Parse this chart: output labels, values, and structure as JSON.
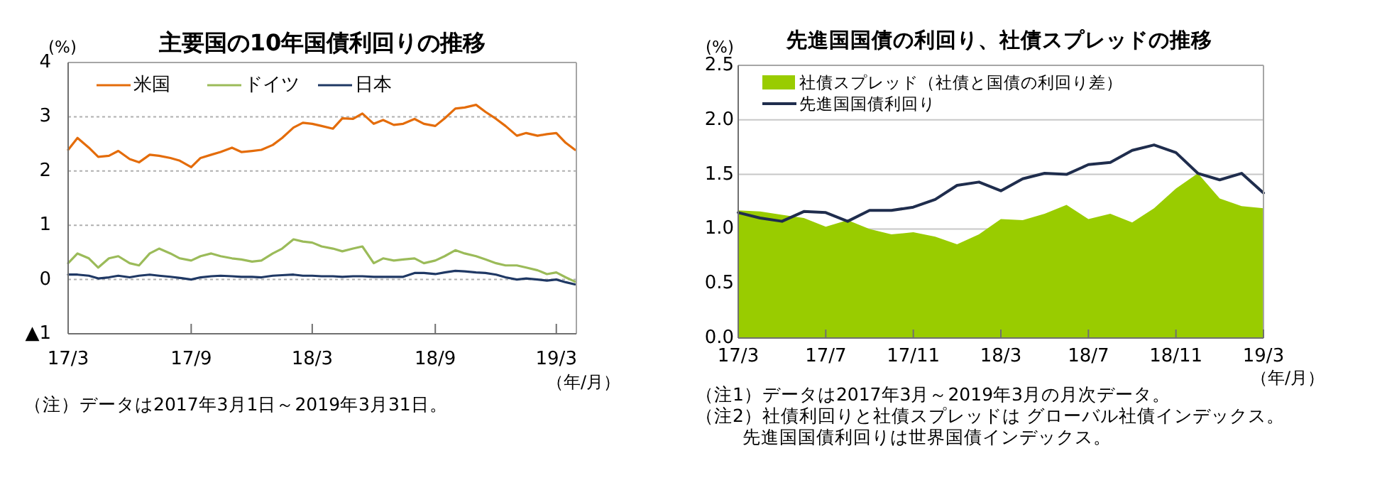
{
  "chart_data": [
    {
      "type": "line",
      "title": "主要国の10年国債利回りの推移",
      "ylabel": "(%)",
      "xlabel": "（年/月）",
      "x": [
        "2017-03-01",
        "2017-03-15",
        "2017-04-01",
        "2017-04-15",
        "2017-05-01",
        "2017-05-15",
        "2017-06-01",
        "2017-06-15",
        "2017-07-01",
        "2017-07-15",
        "2017-08-01",
        "2017-08-15",
        "2017-09-01",
        "2017-09-15",
        "2017-10-01",
        "2017-10-15",
        "2017-11-01",
        "2017-11-15",
        "2017-12-01",
        "2017-12-15",
        "2018-01-01",
        "2018-01-15",
        "2018-02-01",
        "2018-02-15",
        "2018-03-01",
        "2018-03-15",
        "2018-04-01",
        "2018-04-15",
        "2018-05-01",
        "2018-05-15",
        "2018-06-01",
        "2018-06-15",
        "2018-07-01",
        "2018-07-15",
        "2018-08-01",
        "2018-08-15",
        "2018-09-01",
        "2018-09-15",
        "2018-10-01",
        "2018-10-15",
        "2018-11-01",
        "2018-11-15",
        "2018-12-01",
        "2018-12-15",
        "2019-01-01",
        "2019-01-15",
        "2019-02-01",
        "2019-02-15",
        "2019-03-01",
        "2019-03-15",
        "2019-03-29"
      ],
      "series": [
        {
          "name": "米国",
          "color": "#e46c0a",
          "values": [
            2.39,
            2.61,
            2.43,
            2.26,
            2.28,
            2.37,
            2.22,
            2.16,
            2.3,
            2.28,
            2.24,
            2.19,
            2.07,
            2.24,
            2.3,
            2.35,
            2.43,
            2.35,
            2.37,
            2.39,
            2.48,
            2.61,
            2.8,
            2.89,
            2.87,
            2.83,
            2.78,
            2.97,
            2.96,
            3.06,
            2.87,
            2.94,
            2.85,
            2.87,
            2.96,
            2.87,
            2.83,
            2.97,
            3.15,
            3.17,
            3.22,
            3.09,
            2.96,
            2.83,
            2.65,
            2.7,
            2.65,
            2.68,
            2.7,
            2.52,
            2.39
          ]
        },
        {
          "name": "ドイツ",
          "color": "#9bbb59",
          "values": [
            0.3,
            0.48,
            0.39,
            0.22,
            0.39,
            0.43,
            0.3,
            0.26,
            0.48,
            0.57,
            0.48,
            0.39,
            0.35,
            0.43,
            0.48,
            0.43,
            0.39,
            0.37,
            0.33,
            0.35,
            0.48,
            0.57,
            0.74,
            0.7,
            0.68,
            0.61,
            0.57,
            0.52,
            0.57,
            0.61,
            0.3,
            0.39,
            0.35,
            0.37,
            0.39,
            0.3,
            0.35,
            0.43,
            0.54,
            0.48,
            0.43,
            0.37,
            0.3,
            0.26,
            0.26,
            0.22,
            0.17,
            0.1,
            0.13,
            0.04,
            -0.04
          ]
        },
        {
          "name": "日本",
          "color": "#1f3864",
          "values": [
            0.09,
            0.09,
            0.07,
            0.02,
            0.04,
            0.07,
            0.04,
            0.07,
            0.09,
            0.07,
            0.05,
            0.03,
            0.0,
            0.04,
            0.06,
            0.07,
            0.06,
            0.05,
            0.05,
            0.04,
            0.07,
            0.08,
            0.09,
            0.07,
            0.07,
            0.06,
            0.06,
            0.05,
            0.06,
            0.06,
            0.05,
            0.05,
            0.05,
            0.05,
            0.12,
            0.12,
            0.1,
            0.13,
            0.16,
            0.15,
            0.13,
            0.12,
            0.09,
            0.04,
            0.0,
            0.02,
            0.0,
            -0.02,
            0.0,
            -0.05,
            -0.09
          ]
        }
      ],
      "xlim": [
        "2017-03-01",
        "2019-03-31"
      ],
      "xticks": [
        {
          "value": "2017-03-01",
          "label": "17/3"
        },
        {
          "value": "2017-09-01",
          "label": "17/9"
        },
        {
          "value": "2018-03-01",
          "label": "18/3"
        },
        {
          "value": "2018-09-01",
          "label": "18/9"
        },
        {
          "value": "2019-03-01",
          "label": "19/3"
        }
      ],
      "ylim": [
        -1,
        4
      ],
      "yticks": [
        {
          "value": -1,
          "label": "▲1"
        },
        0,
        1,
        2,
        3,
        4
      ],
      "grid": "y",
      "legend": "top left",
      "annotations": [
        "（注）データは2017年3月1日～2019年3月31日。"
      ]
    },
    {
      "type": "area",
      "title": "先進国国債の利回り、社債スプレッドの推移",
      "ylabel": "(%)",
      "xlabel": "（年/月）",
      "categories": [
        "17/3",
        null,
        null,
        null,
        "17/7",
        null,
        null,
        null,
        "17/11",
        null,
        null,
        null,
        "18/3",
        null,
        null,
        null,
        "18/7",
        null,
        null,
        null,
        "18/11",
        null,
        null,
        null,
        "19/3"
      ],
      "series": [
        {
          "name": "社債スプレッド（社債と国債の利回り差）",
          "type": "area",
          "color": "#99cc00",
          "values": [
            1.17,
            1.16,
            1.13,
            1.1,
            1.02,
            1.08,
            1.0,
            0.95,
            0.97,
            0.93,
            0.86,
            0.95,
            1.09,
            1.08,
            1.14,
            1.22,
            1.09,
            1.14,
            1.06,
            1.19,
            1.37,
            1.51,
            1.28,
            1.21,
            1.19
          ]
        },
        {
          "name": "先進国国債利回り",
          "type": "line",
          "color": "#1f2d4d",
          "values": [
            1.15,
            1.1,
            1.07,
            1.16,
            1.15,
            1.07,
            1.17,
            1.17,
            1.2,
            1.27,
            1.4,
            1.43,
            1.35,
            1.46,
            1.51,
            1.5,
            1.59,
            1.61,
            1.72,
            1.77,
            1.7,
            1.51,
            1.45,
            1.51,
            1.33
          ]
        }
      ],
      "ylim": [
        0,
        2.5
      ],
      "yticks": [
        {
          "value": 0,
          "label": "0.0"
        },
        0.5,
        {
          "value": 1,
          "label": "1.0"
        },
        1.5,
        {
          "value": 2,
          "label": "2.0"
        },
        2.5
      ],
      "grid": "y",
      "legend": "top left",
      "annotations": [
        "（注1）データは2017年3月～2019年3月の月次データ。",
        "（注2）社債利回りと社債スプレッドは グローバル社債インデックス。先進国国債利回りは世界国債インデックス。"
      ]
    }
  ]
}
